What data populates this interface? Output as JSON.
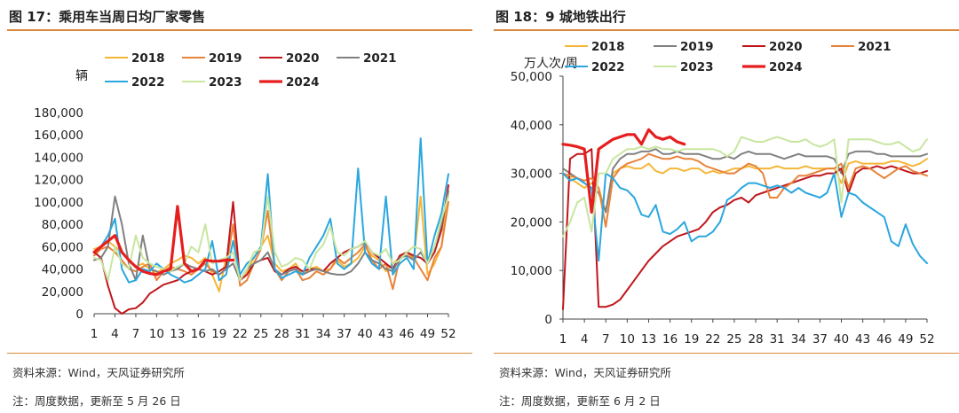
{
  "figures": [
    {
      "title": "图 17：乘用车当周日均厂家零售",
      "source": "资料来源：Wind，天风证券研究所",
      "note": "注：周度数据，更新至 5 月 26 日"
    },
    {
      "title": "图 18：9 城地铁出行",
      "source": "资料来源：Wind，天风证券研究所",
      "note": "注：周度数据，更新至 6 月 2 日"
    }
  ],
  "chart_data": [
    {
      "type": "line",
      "unit_label": "辆",
      "xlabel": "",
      "ylabel": "",
      "xlim": [
        1,
        52
      ],
      "ylim": [
        0,
        180000
      ],
      "yticks": [
        0,
        20000,
        40000,
        60000,
        80000,
        100000,
        120000,
        140000,
        160000,
        180000
      ],
      "ytick_labels": [
        "0",
        "20,000",
        "40,000",
        "60,000",
        "80,000",
        "100,000",
        "120,000",
        "140,000",
        "160,000",
        "180,000"
      ],
      "xticks": [
        1,
        4,
        7,
        10,
        13,
        16,
        19,
        22,
        25,
        28,
        31,
        34,
        37,
        40,
        43,
        46,
        49,
        52
      ],
      "grid": false,
      "legend_position": "top",
      "series": [
        {
          "name": "2018",
          "color": "#f5b638",
          "width": 2,
          "values": [
            58000,
            60000,
            65000,
            60000,
            55000,
            48000,
            42000,
            45000,
            40000,
            37000,
            40000,
            45000,
            48000,
            52000,
            50000,
            45000,
            50000,
            35000,
            20000,
            50000,
            55000,
            30000,
            38000,
            50000,
            60000,
            70000,
            45000,
            38000,
            40000,
            45000,
            35000,
            40000,
            42000,
            38000,
            40000,
            48000,
            42000,
            45000,
            50000,
            60000,
            52000,
            48000,
            38000,
            45000,
            50000,
            55000,
            48000,
            105000,
            35000,
            45000,
            60000,
            110000
          ]
        },
        {
          "name": "2019",
          "color": "#e8833a",
          "width": 2,
          "values": [
            52000,
            58000,
            60000,
            55000,
            48000,
            40000,
            38000,
            42000,
            45000,
            30000,
            38000,
            42000,
            40000,
            38000,
            35000,
            40000,
            45000,
            38000,
            35000,
            40000,
            80000,
            25000,
            30000,
            45000,
            58000,
            92000,
            40000,
            30000,
            38000,
            40000,
            30000,
            32000,
            38000,
            35000,
            40000,
            50000,
            45000,
            50000,
            55000,
            62000,
            48000,
            40000,
            45000,
            22000,
            50000,
            55000,
            50000,
            40000,
            30000,
            50000,
            60000,
            100000
          ]
        },
        {
          "name": "2020",
          "color": "#c0161b",
          "width": 2,
          "values": [
            55000,
            50000,
            25000,
            5000,
            0,
            4000,
            5000,
            10000,
            18000,
            22000,
            26000,
            28000,
            30000,
            35000,
            38000,
            40000,
            38000,
            35000,
            38000,
            42000,
            100000,
            30000,
            35000,
            45000,
            48000,
            50000,
            38000,
            35000,
            40000,
            42000,
            38000,
            40000,
            40000,
            38000,
            45000,
            50000,
            55000,
            58000,
            60000,
            64000,
            55000,
            50000,
            45000,
            40000,
            52000,
            55000,
            52000,
            50000,
            45000,
            55000,
            75000,
            115000
          ]
        },
        {
          "name": "2021",
          "color": "#808080",
          "width": 2,
          "values": [
            48000,
            50000,
            60000,
            105000,
            80000,
            45000,
            30000,
            70000,
            40000,
            38000,
            35000,
            38000,
            40000,
            45000,
            42000,
            40000,
            38000,
            40000,
            35000,
            40000,
            45000,
            30000,
            40000,
            45000,
            48000,
            55000,
            40000,
            35000,
            38000,
            40000,
            35000,
            38000,
            40000,
            38000,
            36000,
            35000,
            35000,
            38000,
            45000,
            55000,
            48000,
            45000,
            40000,
            38000,
            50000,
            52000,
            48000,
            55000,
            45000,
            60000,
            80000,
            110000
          ]
        },
        {
          "name": "2022",
          "color": "#2aa7df",
          "width": 2,
          "values": [
            55000,
            60000,
            70000,
            85000,
            40000,
            28000,
            30000,
            40000,
            38000,
            45000,
            40000,
            35000,
            32000,
            28000,
            30000,
            35000,
            40000,
            65000,
            30000,
            35000,
            65000,
            35000,
            45000,
            50000,
            60000,
            125000,
            40000,
            32000,
            35000,
            38000,
            35000,
            50000,
            60000,
            70000,
            85000,
            45000,
            40000,
            45000,
            130000,
            55000,
            45000,
            40000,
            105000,
            35000,
            45000,
            50000,
            40000,
            157000,
            45000,
            70000,
            90000,
            125000
          ]
        },
        {
          "name": "2023",
          "color": "#c8e6a0",
          "width": 2,
          "values": [
            50000,
            48000,
            30000,
            60000,
            45000,
            40000,
            70000,
            50000,
            45000,
            42000,
            40000,
            38000,
            42000,
            45000,
            60000,
            55000,
            80000,
            45000,
            48000,
            50000,
            55000,
            30000,
            40000,
            55000,
            58000,
            105000,
            55000,
            42000,
            45000,
            50000,
            48000,
            40000,
            55000,
            62000,
            78000,
            55000,
            52000,
            58000,
            60000,
            65000,
            55000,
            52000,
            58000,
            45000,
            48000,
            55000,
            60000,
            58000,
            45000,
            60000,
            85000,
            105000
          ]
        },
        {
          "name": "2024",
          "color": "#e61e1e",
          "width": 3.2,
          "values": [
            55000,
            60000,
            65000,
            70000,
            55000,
            48000,
            42000,
            38000,
            36000,
            35000,
            38000,
            40000,
            96000,
            45000,
            38000,
            40000,
            48000,
            47000,
            47000,
            48000,
            48000
          ]
        }
      ]
    },
    {
      "type": "line",
      "unit_label": "万人次/周",
      "xlabel": "",
      "ylabel": "",
      "xlim": [
        1,
        52
      ],
      "ylim": [
        0,
        50000
      ],
      "yticks": [
        0,
        10000,
        20000,
        30000,
        40000,
        50000
      ],
      "ytick_labels": [
        "0",
        "10,000",
        "20,000",
        "30,000",
        "40,000",
        "50,000"
      ],
      "xticks": [
        1,
        4,
        7,
        10,
        13,
        16,
        19,
        22,
        25,
        28,
        31,
        34,
        37,
        40,
        43,
        46,
        49,
        52
      ],
      "grid": false,
      "legend_position": "top",
      "series": [
        {
          "name": "2018",
          "color": "#f5b638",
          "width": 2,
          "values": [
            30000,
            29000,
            28000,
            27000,
            28000,
            27000,
            22000,
            30000,
            31000,
            31500,
            31000,
            31000,
            32000,
            30500,
            30000,
            31000,
            31000,
            30500,
            31000,
            31000,
            30000,
            30500,
            30000,
            30500,
            31000,
            31000,
            31500,
            31000,
            31000,
            31000,
            31500,
            31000,
            31000,
            31000,
            31500,
            31000,
            31000,
            31000,
            31000,
            28000,
            32000,
            32500,
            32000,
            32000,
            32000,
            32000,
            32500,
            32500,
            32000,
            31500,
            32000,
            33000
          ]
        },
        {
          "name": "2019",
          "color": "#808080",
          "width": 2,
          "values": [
            31000,
            30000,
            29000,
            28000,
            27000,
            26000,
            22000,
            31000,
            33000,
            34000,
            34000,
            34500,
            34500,
            35000,
            34000,
            34000,
            34500,
            34000,
            34000,
            34000,
            33500,
            33000,
            33000,
            33500,
            33000,
            34000,
            34500,
            34000,
            34000,
            34000,
            33500,
            33000,
            33500,
            34000,
            33500,
            33500,
            33500,
            33500,
            33000,
            30000,
            34000,
            34500,
            34500,
            34500,
            34000,
            34000,
            33500,
            33500,
            33500,
            33500,
            33500,
            34000
          ]
        },
        {
          "name": "2020",
          "color": "#c0161b",
          "width": 2,
          "values": [
            2000,
            33000,
            34000,
            34000,
            35000,
            2500,
            2500,
            3000,
            4000,
            6000,
            8000,
            10000,
            12000,
            13500,
            15000,
            16000,
            17000,
            17500,
            18000,
            18500,
            20000,
            22000,
            23000,
            23500,
            24500,
            25000,
            24000,
            25500,
            26000,
            26500,
            27000,
            27500,
            28000,
            28500,
            29000,
            29500,
            29500,
            30000,
            30000,
            31000,
            26000,
            30000,
            31000,
            31000,
            31500,
            31000,
            31500,
            31000,
            30500,
            30000,
            30000,
            30500
          ]
        },
        {
          "name": "2021",
          "color": "#e8833a",
          "width": 2,
          "values": [
            30000,
            29500,
            29000,
            28500,
            29000,
            27000,
            19000,
            29000,
            31000,
            32000,
            32500,
            33000,
            34000,
            33500,
            33000,
            33000,
            33500,
            33000,
            33000,
            32500,
            31500,
            31000,
            30500,
            30000,
            30000,
            31000,
            32000,
            31500,
            30000,
            25000,
            25000,
            27000,
            28000,
            29500,
            29500,
            30000,
            30500,
            31000,
            31000,
            32000,
            27000,
            31000,
            31500,
            31000,
            30000,
            29000,
            30000,
            31000,
            31500,
            30500,
            30000,
            29500
          ]
        },
        {
          "name": "2022",
          "color": "#2aa7df",
          "width": 2,
          "values": [
            30000,
            28500,
            29000,
            28000,
            27000,
            12000,
            30000,
            29000,
            27000,
            26500,
            25000,
            21500,
            21000,
            23500,
            18000,
            17500,
            18500,
            20000,
            16000,
            17000,
            17000,
            18000,
            20000,
            24500,
            25500,
            27000,
            28000,
            28000,
            27500,
            27000,
            27500,
            27000,
            26000,
            27000,
            26000,
            25500,
            25000,
            26000,
            30000,
            21000,
            26000,
            25500,
            24000,
            23000,
            22000,
            21000,
            16000,
            15000,
            19500,
            15500,
            13000,
            11500
          ]
        },
        {
          "name": "2023",
          "color": "#c8e6a0",
          "width": 2,
          "values": [
            17000,
            20000,
            24000,
            25000,
            18000,
            30000,
            30000,
            33000,
            34000,
            35000,
            35000,
            35500,
            35000,
            35500,
            35000,
            35000,
            34500,
            35000,
            35000,
            35000,
            35000,
            35000,
            34500,
            33500,
            34500,
            37500,
            37000,
            36500,
            36500,
            37000,
            37500,
            37000,
            36500,
            36500,
            37000,
            36000,
            35500,
            36000,
            37000,
            24000,
            37000,
            37000,
            37000,
            37000,
            36500,
            36000,
            36000,
            36500,
            35500,
            34500,
            35000,
            37000
          ]
        },
        {
          "name": "2024",
          "color": "#e61e1e",
          "width": 3.2,
          "values": [
            36000,
            35800,
            35500,
            35000,
            22000,
            35000,
            36000,
            37000,
            37500,
            38000,
            38000,
            36000,
            39000,
            37500,
            37000,
            37500,
            36500,
            36000
          ]
        }
      ]
    }
  ]
}
